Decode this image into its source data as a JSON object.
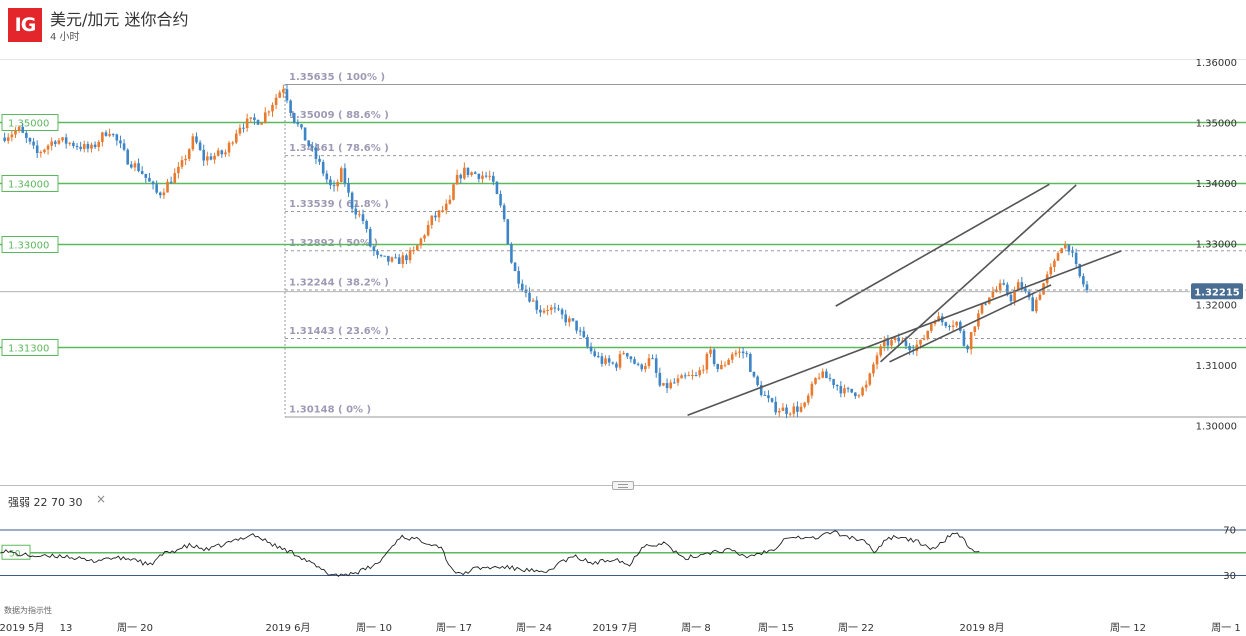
{
  "header": {
    "logo": "IG",
    "title": "美元/加元 迷你合约",
    "timeframe": "4 小时"
  },
  "indicator": {
    "label": "强弱",
    "params": "22  70  30",
    "close": "×",
    "note": "数据为指示性"
  },
  "colors": {
    "up": "#e87a2f",
    "down": "#3d85c6",
    "level": "#5cb85c",
    "fib": "#999999",
    "trend": "#555555",
    "price_tag": "#4a6e93"
  },
  "chart_data": [
    {
      "type": "candlestick",
      "title": "美元/加元 迷你合约",
      "timeframe": "4 小时",
      "y_ticks": [
        "1.36000",
        "1.35000",
        "1.34000",
        "1.33000",
        "1.32000",
        "1.31000",
        "1.30000"
      ],
      "ylim": [
        1.2965,
        1.3647
      ],
      "x_ticks": [
        "2019 5月",
        "13",
        "周一 20",
        "2019 6月",
        "周一 10",
        "周一 17",
        "周一 24",
        "2019 7月",
        "周一 8",
        "周一 15",
        "周一 22",
        "2019 8月",
        "周一 12",
        "周一 1"
      ],
      "current_price": "1.32215",
      "horizontal_levels": [
        {
          "label": "1.35000",
          "value": 1.35
        },
        {
          "label": "1.34000",
          "value": 1.34
        },
        {
          "label": "1.33000",
          "value": 1.33
        },
        {
          "label": "1.31300",
          "value": 1.313
        }
      ],
      "fibonacci": [
        {
          "label": "1.35635 ( 100% )",
          "value": 1.35635
        },
        {
          "label": "1.35009 ( 88.6% )",
          "value": 1.35009
        },
        {
          "label": "1.34461 ( 78.6% )",
          "value": 1.34461
        },
        {
          "label": "1.33539 ( 61.8% )",
          "value": 1.33539
        },
        {
          "label": "1.32892 ( 50% )",
          "value": 1.32892
        },
        {
          "label": "1.32244 ( 38.2% )",
          "value": 1.32244
        },
        {
          "label": "1.31443 ( 23.6% )",
          "value": 1.31443
        },
        {
          "label": "1.30148 ( 0% )",
          "value": 1.30148
        }
      ],
      "close_path": [
        [
          0,
          1.3475
        ],
        [
          0.02,
          1.3488
        ],
        [
          0.04,
          1.3448
        ],
        [
          0.06,
          1.3472
        ],
        [
          0.08,
          1.3465
        ],
        [
          0.1,
          1.3455
        ],
        [
          0.12,
          1.349
        ],
        [
          0.135,
          1.3455
        ],
        [
          0.14,
          1.344
        ],
        [
          0.155,
          1.3422
        ],
        [
          0.175,
          1.338
        ],
        [
          0.2,
          1.3425
        ],
        [
          0.215,
          1.3475
        ],
        [
          0.225,
          1.344
        ],
        [
          0.25,
          1.345
        ],
        [
          0.265,
          1.3495
        ],
        [
          0.275,
          1.35
        ],
        [
          0.29,
          1.3505
        ],
        [
          0.31,
          1.355
        ],
        [
          0.315,
          1.356
        ],
        [
          0.325,
          1.351
        ],
        [
          0.34,
          1.347
        ],
        [
          0.355,
          1.343
        ],
        [
          0.365,
          1.34
        ],
        [
          0.37,
          1.3385
        ],
        [
          0.38,
          1.342
        ],
        [
          0.39,
          1.3365
        ],
        [
          0.405,
          1.3335
        ],
        [
          0.41,
          1.33
        ],
        [
          0.42,
          1.3275
        ],
        [
          0.44,
          1.327
        ],
        [
          0.46,
          1.3285
        ],
        [
          0.48,
          1.334
        ],
        [
          0.5,
          1.3365
        ],
        [
          0.505,
          1.34
        ],
        [
          0.515,
          1.342
        ],
        [
          0.53,
          1.3415
        ],
        [
          0.545,
          1.341
        ],
        [
          0.56,
          1.3345
        ],
        [
          0.57,
          1.326
        ],
        [
          0.585,
          1.322
        ],
        [
          0.6,
          1.319
        ],
        [
          0.61,
          1.3195
        ],
        [
          0.625,
          1.318
        ],
        [
          0.64,
          1.3165
        ],
        [
          0.655,
          1.3125
        ],
        [
          0.67,
          1.3105
        ],
        [
          0.685,
          1.31
        ],
        [
          0.695,
          1.3125
        ],
        [
          0.71,
          1.3095
        ],
        [
          0.725,
          1.311
        ],
        [
          0.735,
          1.306
        ],
        [
          0.75,
          1.307
        ],
        [
          0.765,
          1.308
        ],
        [
          0.775,
          1.308
        ],
        [
          0.79,
          1.312
        ],
        [
          0.8,
          1.309
        ],
        [
          0.815,
          1.312
        ],
        [
          0.83,
          1.312
        ],
        [
          0.84,
          1.307
        ],
        [
          0.86,
          1.303
        ],
        [
          0.875,
          1.3025
        ],
        [
          0.895,
          1.303
        ],
        [
          0.91,
          1.3085
        ],
        [
          0.925,
          1.3075
        ],
        [
          0.94,
          1.3055
        ],
        [
          0.955,
          1.3055
        ],
        [
          0.965,
          1.3065
        ],
        [
          0.975,
          1.3115
        ],
        [
          0.985,
          1.3135
        ],
        [
          1.0,
          1.314
        ],
        [
          1.015,
          1.313
        ],
        [
          1.025,
          1.3135
        ],
        [
          1.04,
          1.318
        ],
        [
          1.05,
          1.317
        ],
        [
          1.065,
          1.317
        ],
        [
          1.075,
          1.3125
        ],
        [
          1.085,
          1.317
        ],
        [
          1.1,
          1.3215
        ],
        [
          1.115,
          1.323
        ],
        [
          1.125,
          1.321
        ],
        [
          1.135,
          1.3235
        ],
        [
          1.15,
          1.3195
        ],
        [
          1.16,
          1.323
        ],
        [
          1.175,
          1.327
        ],
        [
          1.18,
          1.33
        ],
        [
          1.19,
          1.3295
        ],
        [
          1.2,
          1.325
        ],
        [
          1.21,
          1.3222
        ]
      ],
      "trend_lines": [
        {
          "from": [
            0.765,
            1.3017
          ],
          "to": [
            1.248,
            1.3288
          ]
        },
        {
          "from": [
            0.98,
            1.3105
          ],
          "to": [
            1.198,
            1.3397
          ]
        },
        {
          "from": [
            0.93,
            1.3197
          ],
          "to": [
            1.168,
            1.3398
          ]
        },
        {
          "from": [
            0.99,
            1.3118
          ],
          "to": [
            1.2,
            1.312
          ]
        }
      ]
    },
    {
      "type": "line",
      "title": "强弱",
      "y_ticks": [
        "70",
        "50",
        "30"
      ],
      "ylim": [
        20,
        80
      ],
      "levels": [
        70,
        50,
        30
      ],
      "rsi_path": [
        [
          0,
          52
        ],
        [
          0.02,
          48
        ],
        [
          0.05,
          46
        ],
        [
          0.07,
          47
        ],
        [
          0.1,
          42
        ],
        [
          0.12,
          45
        ],
        [
          0.15,
          44
        ],
        [
          0.165,
          38
        ],
        [
          0.18,
          48
        ],
        [
          0.21,
          56
        ],
        [
          0.23,
          52
        ],
        [
          0.26,
          60
        ],
        [
          0.28,
          66
        ],
        [
          0.3,
          58
        ],
        [
          0.31,
          54
        ],
        [
          0.33,
          48
        ],
        [
          0.35,
          38
        ],
        [
          0.365,
          31
        ],
        [
          0.38,
          30
        ],
        [
          0.4,
          33
        ],
        [
          0.42,
          40
        ],
        [
          0.445,
          64
        ],
        [
          0.47,
          60
        ],
        [
          0.49,
          55
        ],
        [
          0.5,
          38
        ],
        [
          0.51,
          30
        ],
        [
          0.53,
          36
        ],
        [
          0.56,
          37
        ],
        [
          0.59,
          34
        ],
        [
          0.605,
          31
        ],
        [
          0.625,
          42
        ],
        [
          0.64,
          46
        ],
        [
          0.66,
          40
        ],
        [
          0.685,
          45
        ],
        [
          0.7,
          38
        ],
        [
          0.715,
          56
        ],
        [
          0.74,
          58
        ],
        [
          0.76,
          44
        ],
        [
          0.79,
          50
        ],
        [
          0.81,
          52
        ],
        [
          0.83,
          46
        ],
        [
          0.86,
          52
        ],
        [
          0.875,
          64
        ],
        [
          0.905,
          62
        ],
        [
          0.925,
          68
        ],
        [
          0.96,
          60
        ],
        [
          0.975,
          50
        ],
        [
          0.985,
          62
        ],
        [
          1.0,
          64
        ],
        [
          1.025,
          58
        ],
        [
          1.04,
          52
        ],
        [
          1.06,
          67
        ],
        [
          1.07,
          64
        ],
        [
          1.08,
          52
        ],
        [
          1.085,
          50
        ],
        [
          1.09,
          52
        ]
      ]
    }
  ]
}
